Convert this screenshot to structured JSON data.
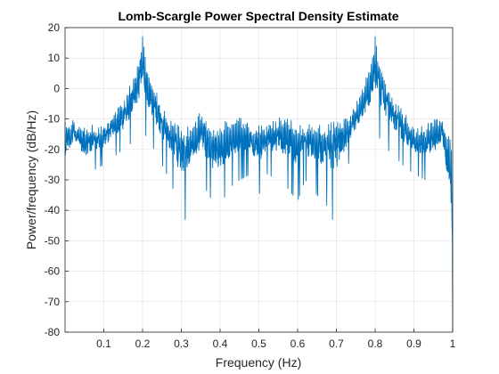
{
  "chart_data": {
    "type": "line",
    "title": "Lomb-Scargle Power Spectral Density Estimate",
    "xlabel": "Frequency (Hz)",
    "ylabel": "Power/frequency (dB/Hz)",
    "xlim": [
      0,
      1
    ],
    "ylim": [
      -80,
      20
    ],
    "xticks": [
      0.1,
      0.2,
      0.3,
      0.4,
      0.5,
      0.6,
      0.7,
      0.8,
      0.9,
      1
    ],
    "xtick_labels": [
      "0.1",
      "0.2",
      "0.3",
      "0.4",
      "0.5",
      "0.6",
      "0.7",
      "0.8",
      "0.9",
      "1"
    ],
    "yticks": [
      -80,
      -70,
      -60,
      -50,
      -40,
      -30,
      -20,
      -10,
      0,
      10,
      20
    ],
    "ytick_labels": [
      "-80",
      "-70",
      "-60",
      "-50",
      "-40",
      "-30",
      "-20",
      "-10",
      "0",
      "10",
      "20"
    ],
    "grid": true,
    "line_color": "#0072bd",
    "envelope": {
      "x": [
        0.0,
        0.02,
        0.03,
        0.05,
        0.07,
        0.1,
        0.13,
        0.15,
        0.17,
        0.19,
        0.2,
        0.21,
        0.23,
        0.25,
        0.27,
        0.3,
        0.33,
        0.35,
        0.38,
        0.4,
        0.43,
        0.45,
        0.48,
        0.5,
        0.52,
        0.55,
        0.57,
        0.6,
        0.62,
        0.65,
        0.67,
        0.7,
        0.73,
        0.75,
        0.77,
        0.79,
        0.8,
        0.81,
        0.83,
        0.85,
        0.87,
        0.9,
        0.93,
        0.95,
        0.97,
        0.98,
        1.0
      ],
      "peak": [
        -11,
        -9,
        -12,
        -12,
        -12,
        -12,
        -7,
        -5,
        2,
        10,
        17,
        9,
        1,
        -6,
        -10,
        -13,
        -12,
        -7,
        -13,
        -12,
        -9,
        -9,
        -12,
        -12,
        -12,
        -9,
        -9,
        -12,
        -12,
        -11,
        -13,
        -9,
        -10,
        -5,
        1,
        9,
        17,
        10,
        2,
        -4,
        -7,
        -12,
        -12,
        -10,
        -9,
        -11,
        -18
      ],
      "trough": [
        -32,
        -25,
        -22,
        -32,
        -27,
        -25,
        -22,
        -20,
        -18,
        -15,
        -13,
        -16,
        -20,
        -25,
        -30,
        -40,
        -35,
        -30,
        -37,
        -38,
        -32,
        -30,
        -28,
        -35,
        -28,
        -30,
        -32,
        -37,
        -30,
        -35,
        -38,
        -40,
        -25,
        -20,
        -18,
        -15,
        -13,
        -16,
        -20,
        -22,
        -25,
        -28,
        -30,
        -30,
        -26,
        -30,
        -80
      ]
    },
    "notable_values": [
      {
        "x": 0.2,
        "y": 17
      },
      {
        "x": 0.8,
        "y": 17
      },
      {
        "x": 0.31,
        "y": -43
      },
      {
        "x": 0.69,
        "y": -43
      },
      {
        "x": 1.0,
        "y": -80
      }
    ]
  }
}
